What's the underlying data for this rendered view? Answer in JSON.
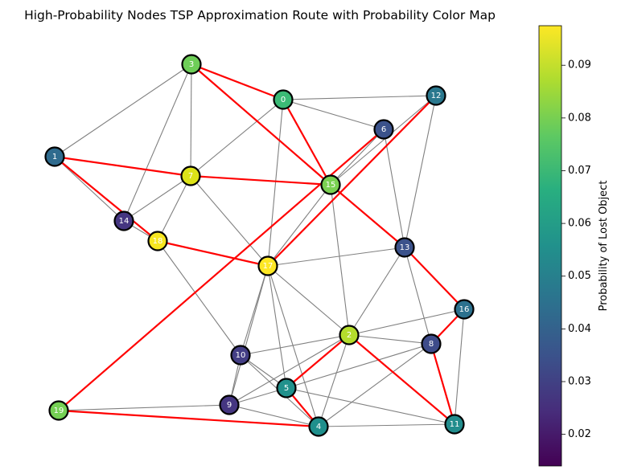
{
  "title": "High-Probability Nodes TSP Approximation Route with Probability Color Map",
  "colorbar": {
    "label": "Probability of Lost Object",
    "min": 0.014,
    "max": 0.0975,
    "ticks": [
      "0.02",
      "0.03",
      "0.04",
      "0.05",
      "0.06",
      "0.07",
      "0.08",
      "0.09"
    ]
  },
  "colors": {
    "route": "#ff0000",
    "edge": "#808080",
    "node_border": "#000000"
  },
  "nodes": [
    {
      "id": "0",
      "prob": 0.068,
      "color": "#3bba76"
    },
    {
      "id": "1",
      "prob": 0.04,
      "color": "#2f6b8e"
    },
    {
      "id": "2",
      "prob": 0.088,
      "color": "#b4dd2c"
    },
    {
      "id": "3",
      "prob": 0.078,
      "color": "#6ece58"
    },
    {
      "id": "4",
      "prob": 0.052,
      "color": "#1f8f8c"
    },
    {
      "id": "5",
      "prob": 0.053,
      "color": "#21918c"
    },
    {
      "id": "6",
      "prob": 0.034,
      "color": "#3b528b"
    },
    {
      "id": "7",
      "prob": 0.092,
      "color": "#dde318"
    },
    {
      "id": "8",
      "prob": 0.032,
      "color": "#3e4c8a"
    },
    {
      "id": "9",
      "prob": 0.027,
      "color": "#453681"
    },
    {
      "id": "10",
      "prob": 0.029,
      "color": "#433e85"
    },
    {
      "id": "11",
      "prob": 0.051,
      "color": "#228d8d"
    },
    {
      "id": "12",
      "prob": 0.045,
      "color": "#2a788e"
    },
    {
      "id": "13",
      "prob": 0.034,
      "color": "#3b528b"
    },
    {
      "id": "14",
      "prob": 0.027,
      "color": "#453681"
    },
    {
      "id": "15",
      "prob": 0.076,
      "color": "#7ad151"
    },
    {
      "id": "16",
      "prob": 0.043,
      "color": "#2c718e"
    },
    {
      "id": "17",
      "prob": 0.097,
      "color": "#fde725"
    },
    {
      "id": "18",
      "prob": 0.096,
      "color": "#f6e620"
    },
    {
      "id": "19",
      "prob": 0.079,
      "color": "#75d054"
    }
  ],
  "edges": [
    [
      "3",
      "1"
    ],
    [
      "3",
      "7"
    ],
    [
      "3",
      "14"
    ],
    [
      "3",
      "0"
    ],
    [
      "0",
      "12"
    ],
    [
      "0",
      "6"
    ],
    [
      "0",
      "7"
    ],
    [
      "0",
      "17"
    ],
    [
      "6",
      "15"
    ],
    [
      "6",
      "13"
    ],
    [
      "12",
      "15"
    ],
    [
      "12",
      "17"
    ],
    [
      "12",
      "13"
    ],
    [
      "1",
      "14"
    ],
    [
      "1",
      "18"
    ],
    [
      "7",
      "14"
    ],
    [
      "7",
      "18"
    ],
    [
      "7",
      "17"
    ],
    [
      "15",
      "17"
    ],
    [
      "15",
      "2"
    ],
    [
      "14",
      "18"
    ],
    [
      "18",
      "17"
    ],
    [
      "18",
      "10"
    ],
    [
      "17",
      "13"
    ],
    [
      "17",
      "2"
    ],
    [
      "17",
      "10"
    ],
    [
      "17",
      "9"
    ],
    [
      "17",
      "5"
    ],
    [
      "17",
      "4"
    ],
    [
      "13",
      "2"
    ],
    [
      "13",
      "8"
    ],
    [
      "2",
      "16"
    ],
    [
      "2",
      "8"
    ],
    [
      "2",
      "10"
    ],
    [
      "2",
      "4"
    ],
    [
      "2",
      "9"
    ],
    [
      "16",
      "11"
    ],
    [
      "8",
      "4"
    ],
    [
      "8",
      "5"
    ],
    [
      "10",
      "5"
    ],
    [
      "10",
      "4"
    ],
    [
      "10",
      "9"
    ],
    [
      "9",
      "5"
    ],
    [
      "9",
      "4"
    ],
    [
      "5",
      "11"
    ],
    [
      "4",
      "11"
    ],
    [
      "19",
      "9"
    ]
  ],
  "route": [
    [
      "3",
      "0"
    ],
    [
      "0",
      "15"
    ],
    [
      "3",
      "15"
    ],
    [
      "1",
      "7"
    ],
    [
      "7",
      "15"
    ],
    [
      "1",
      "18"
    ],
    [
      "18",
      "17"
    ],
    [
      "17",
      "12"
    ],
    [
      "6",
      "19"
    ],
    [
      "19",
      "4"
    ],
    [
      "15",
      "13"
    ],
    [
      "13",
      "16"
    ],
    [
      "16",
      "8"
    ],
    [
      "8",
      "11"
    ],
    [
      "11",
      "2"
    ],
    [
      "2",
      "5"
    ],
    [
      "5",
      "4"
    ]
  ]
}
